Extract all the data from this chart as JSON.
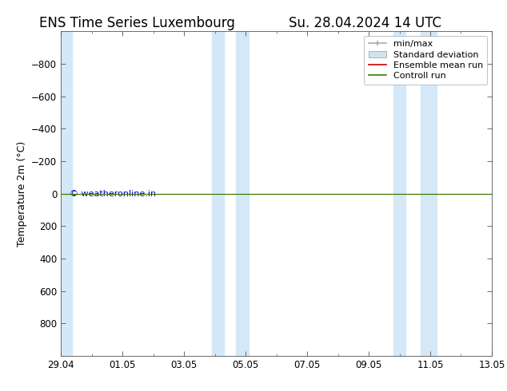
{
  "title_left": "ENS Time Series Luxembourg",
  "title_right": "Su. 28.04.2024 14 UTC",
  "ylabel": "Temperature 2m (°C)",
  "ylim_top": -1000,
  "ylim_bottom": 1000,
  "yticks": [
    -800,
    -600,
    -400,
    -200,
    0,
    200,
    400,
    600,
    800
  ],
  "xtick_labels": [
    "29.04",
    "01.05",
    "03.05",
    "05.05",
    "07.05",
    "09.05",
    "11.05",
    "13.05"
  ],
  "xtick_positions": [
    0,
    2,
    4,
    6,
    8,
    10,
    12,
    14
  ],
  "x_start": 0,
  "x_end": 14,
  "bg_color": "#ffffff",
  "plot_bg_color": "#ffffff",
  "shade_color": "#d4e8f7",
  "shade_regions": [
    [
      0.0,
      0.35
    ],
    [
      4.9,
      5.3
    ],
    [
      5.7,
      6.1
    ],
    [
      10.8,
      11.2
    ],
    [
      11.7,
      12.2
    ]
  ],
  "control_run_y": 0.0,
  "ensemble_mean_y": 0.0,
  "control_run_color": "#3a7a00",
  "ensemble_mean_color": "#cc0000",
  "min_max_color": "#aaaaaa",
  "std_dev_color": "#cce4f0",
  "watermark_text": "© weatheronline.in",
  "watermark_color": "#0000cc",
  "legend_labels": [
    "min/max",
    "Standard deviation",
    "Ensemble mean run",
    "Controll run"
  ],
  "title_fontsize": 12,
  "axis_fontsize": 9,
  "tick_fontsize": 8.5,
  "legend_fontsize": 8
}
